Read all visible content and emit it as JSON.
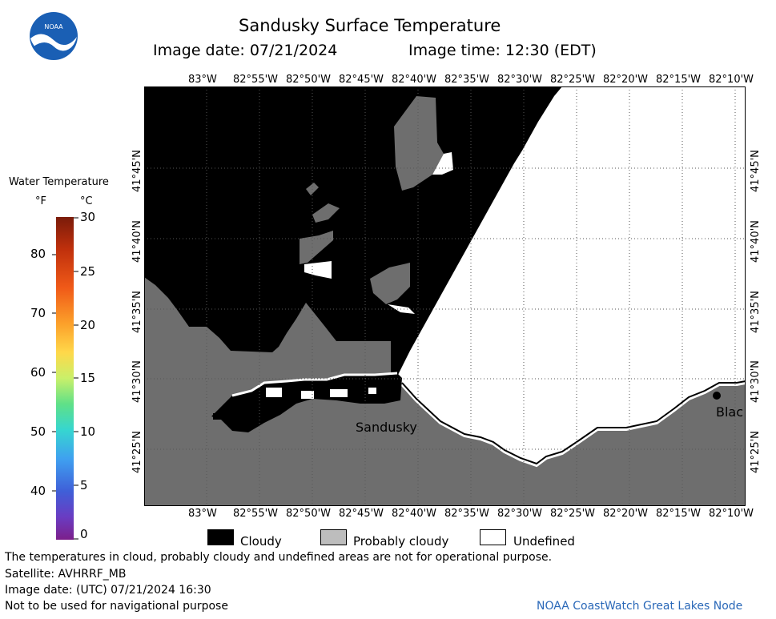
{
  "header": {
    "title": "Sandusky Surface Temperature",
    "image_date": "Image date: 07/21/2024",
    "image_time": "Image time: 12:30 (EDT)"
  },
  "logo": {
    "text": "NOAA"
  },
  "color_scale": {
    "title": "Water Temperature",
    "unit_f": "°F",
    "unit_c": "°C",
    "f_ticks": [
      "80",
      "70",
      "60",
      "50",
      "40"
    ],
    "c_ticks": [
      "30",
      "25",
      "20",
      "15",
      "10",
      "5",
      "0"
    ]
  },
  "map": {
    "lon_labels": [
      "83°W",
      "82°55'W",
      "82°50'W",
      "82°45'W",
      "82°40'W",
      "82°35'W",
      "82°30'W",
      "82°25'W",
      "82°20'W",
      "82°15'W",
      "82°10'W"
    ],
    "lat_labels": [
      "41°45'N",
      "41°40'N",
      "41°35'N",
      "41°30'N",
      "41°25'N"
    ],
    "places": {
      "sandusky": "Sandusky",
      "blac": "Blac"
    },
    "colors": {
      "cloudy": "#000000",
      "probably_cloudy": "#6e6e6e",
      "land": "#6e6e6e",
      "undefined": "#ffffff"
    }
  },
  "legend": {
    "cloudy": "Cloudy",
    "probably_cloudy": "Probably cloudy",
    "undefined": "Undefined"
  },
  "footer": {
    "disclaimer": "The temperatures in cloud, probably cloudy and undefined areas are not for operational purpose.",
    "satellite": "Satellite: AVHRRF_MB",
    "utc_date": "Image date: (UTC) 07/21/2024  16:30",
    "nav_warning": "Not to be used for navigational purpose",
    "credit": "NOAA CoastWatch Great Lakes Node"
  }
}
